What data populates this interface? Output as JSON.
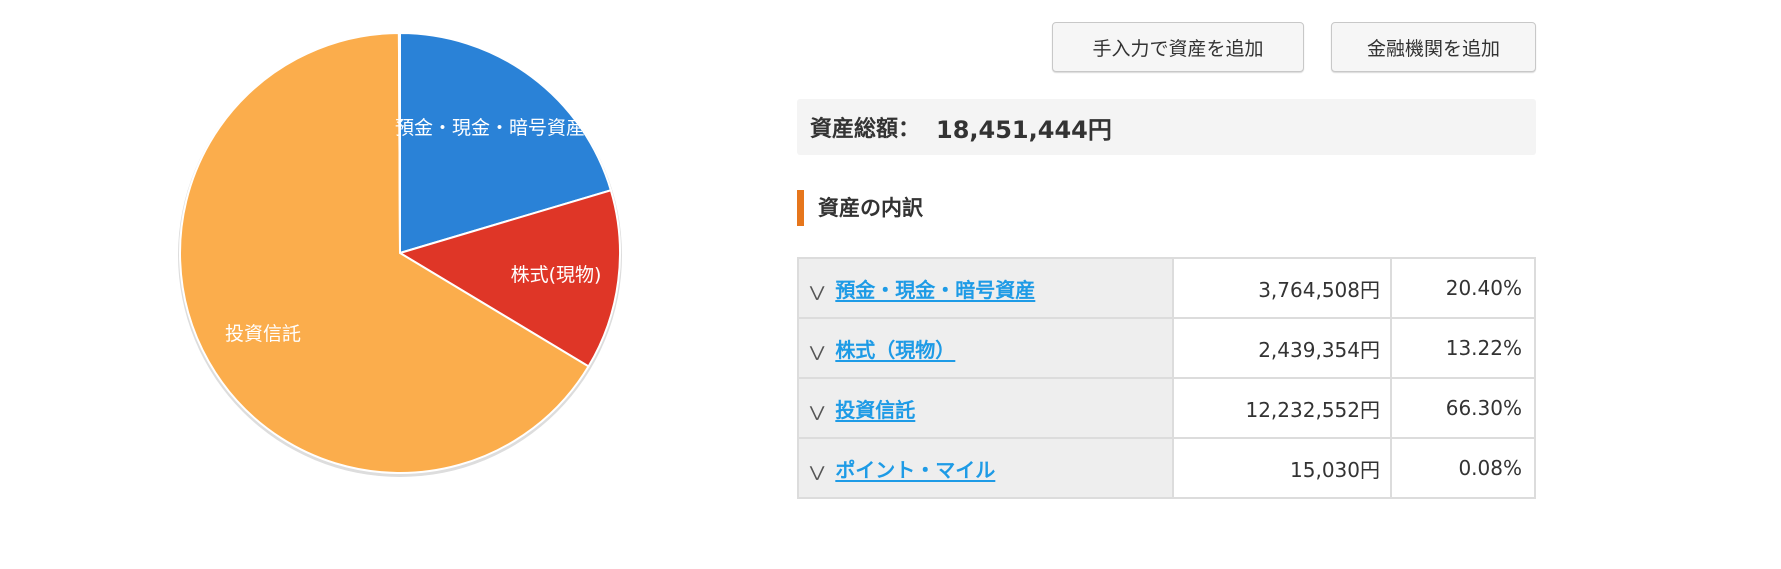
{
  "buttons": {
    "manual_add": "手入力で資産を追加",
    "institution_add": "金融機関を追加"
  },
  "total": {
    "label": "資産総額：",
    "value": "18,451,444円"
  },
  "section_title": "資産の内訳",
  "rows": [
    {
      "name": "預金・現金・暗号資産",
      "amount": "3,764,508円",
      "percent": "20.40%"
    },
    {
      "name": "株式（現物）",
      "amount": "2,439,354円",
      "percent": "13.22%"
    },
    {
      "name": "投資信託",
      "amount": "12,232,552円",
      "percent": "66.30%"
    },
    {
      "name": "ポイント・マイル",
      "amount": "15,030円",
      "percent": "0.08%"
    }
  ],
  "chart_data": {
    "type": "pie",
    "categories": [
      "預金・現金・暗号資産",
      "株式(現物)",
      "投資信託",
      "ポイント・マイル"
    ],
    "values": [
      20.4,
      13.22,
      66.3,
      0.08
    ],
    "slice_labels": [
      "預金・現金・暗号資産",
      "株式(現物)",
      "投資信託",
      ""
    ],
    "colors": [
      "#2a82d7",
      "#df3627",
      "#fbad4c",
      "#666666"
    ]
  }
}
